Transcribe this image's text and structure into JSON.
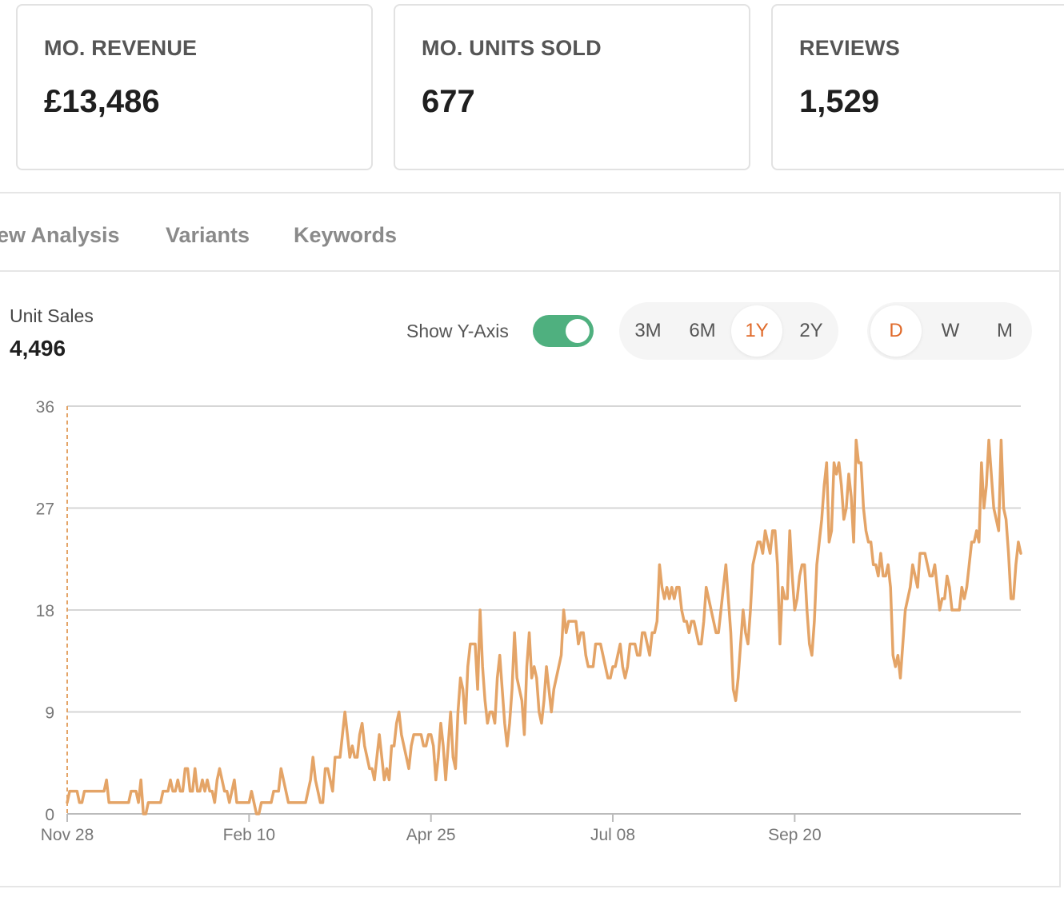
{
  "kpis": [
    {
      "label": "MO. REVENUE",
      "value": "£13,486"
    },
    {
      "label": "MO. UNITS SOLD",
      "value": "677"
    },
    {
      "label": "REVIEWS",
      "value": "1,529"
    }
  ],
  "tabs": [
    "ew Analysis",
    "Variants",
    "Keywords"
  ],
  "metric": {
    "label": "Unit Sales",
    "value": "4,496"
  },
  "controls": {
    "show_y_axis_label": "Show Y-Axis",
    "show_y_axis_on": true,
    "ranges": [
      "3M",
      "6M",
      "1Y",
      "2Y"
    ],
    "active_range": "1Y",
    "granularity": [
      "D",
      "W",
      "M"
    ],
    "active_granularity": "D"
  },
  "colors": {
    "line": "#e4a467",
    "toggle_on": "#4fb07f",
    "active_text": "#e06a2a"
  },
  "chart_data": {
    "type": "line",
    "xlabel": "",
    "ylabel": "",
    "ylim": [
      0,
      36
    ],
    "yticks": [
      0,
      9,
      18,
      27,
      36
    ],
    "xticks": [
      "Nov 28",
      "Feb 10",
      "Apr 25",
      "Jul 08",
      "Sep 20"
    ],
    "xtick_days": [
      0,
      74,
      148,
      222,
      296
    ],
    "grid": true,
    "series": [
      {
        "values": [
          1,
          2,
          2,
          2,
          2,
          1,
          1,
          2,
          2,
          2,
          2,
          2,
          2,
          2,
          2,
          2,
          3,
          1,
          1,
          1,
          1,
          1,
          1,
          1,
          1,
          1,
          2,
          2,
          2,
          1,
          3,
          0,
          0,
          1,
          1,
          1,
          1,
          1,
          1,
          2,
          2,
          2,
          3,
          2,
          2,
          3,
          2,
          2,
          4,
          4,
          2,
          2,
          4,
          2,
          2,
          3,
          2,
          3,
          2,
          2,
          1,
          3,
          4,
          3,
          2,
          2,
          1,
          2,
          3,
          1,
          1,
          1,
          1,
          1,
          1,
          2,
          1,
          0,
          0,
          1,
          1,
          1,
          1,
          1,
          2,
          2,
          2,
          4,
          3,
          2,
          1,
          1,
          1,
          1,
          1,
          1,
          1,
          1,
          2,
          3,
          5,
          3,
          2,
          1,
          1,
          4,
          4,
          3,
          2,
          5,
          5,
          5,
          7,
          9,
          7,
          5,
          6,
          5,
          5,
          7,
          8,
          6,
          5,
          4,
          4,
          3,
          5,
          7,
          5,
          3,
          4,
          3,
          6,
          6,
          8,
          9,
          7,
          6,
          5,
          4,
          6,
          7,
          7,
          7,
          7,
          6,
          6,
          7,
          7,
          6,
          3,
          5,
          8,
          6,
          3,
          6,
          9,
          5,
          4,
          9,
          12,
          11,
          8,
          13,
          15,
          15,
          15,
          11,
          18,
          13,
          10,
          8,
          9,
          9,
          8,
          12,
          14,
          11,
          8,
          6,
          8,
          11,
          16,
          12,
          11,
          10,
          7,
          13,
          16,
          12,
          13,
          12,
          9,
          8,
          10,
          13,
          11,
          9,
          11,
          12,
          13,
          14,
          18,
          16,
          17,
          17,
          17,
          17,
          15,
          16,
          16,
          14,
          13,
          13,
          13,
          15,
          15,
          15,
          14,
          13,
          12,
          12,
          13,
          13,
          14,
          15,
          13,
          12,
          13,
          15,
          15,
          15,
          14,
          14,
          16,
          16,
          15,
          14,
          16,
          16,
          17,
          22,
          20,
          19,
          20,
          19,
          20,
          19,
          20,
          20,
          18,
          17,
          17,
          16,
          17,
          17,
          16,
          15,
          15,
          17,
          20,
          19,
          18,
          17,
          16,
          16,
          18,
          20,
          22,
          19,
          16,
          11,
          10,
          12,
          15,
          18,
          16,
          15,
          18,
          22,
          23,
          24,
          24,
          23,
          25,
          24,
          23,
          25,
          25,
          22,
          15,
          20,
          19,
          19,
          25,
          21,
          18,
          19,
          21,
          22,
          22,
          18,
          15,
          14,
          17,
          22,
          24,
          26,
          29,
          31,
          24,
          25,
          31,
          30,
          31,
          29,
          26,
          27,
          30,
          28,
          24,
          33,
          31,
          31,
          27,
          25,
          24,
          24,
          22,
          22,
          21,
          23,
          21,
          21,
          22,
          20,
          14,
          13,
          14,
          12,
          15,
          18,
          19,
          20,
          22,
          21,
          20,
          23,
          23,
          23,
          22,
          21,
          21,
          22,
          20,
          18,
          19,
          19,
          21,
          20,
          18,
          18,
          18,
          18,
          20,
          19,
          20,
          22,
          24,
          24,
          25,
          24,
          31,
          27,
          29,
          33,
          30,
          27,
          26,
          25,
          33,
          27,
          26,
          23,
          19,
          19,
          22,
          24,
          23
        ]
      }
    ]
  }
}
